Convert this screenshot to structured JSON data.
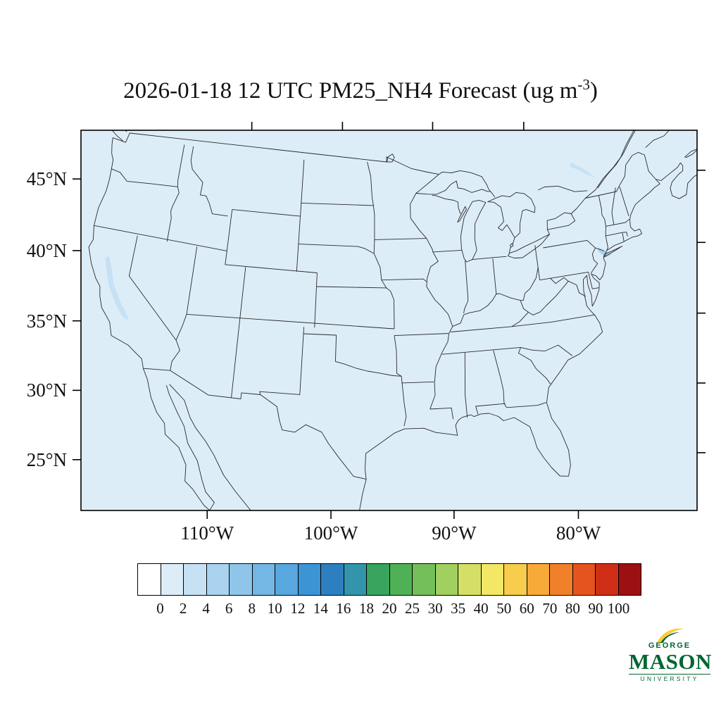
{
  "title": {
    "prefix": "2026-01-18 12 UTC PM25_NH4 Forecast (ug m",
    "exponent": "-3",
    "suffix": ")"
  },
  "axes": {
    "lat_ticks": [
      {
        "label": "45°N",
        "value": 45
      },
      {
        "label": "40°N",
        "value": 40
      },
      {
        "label": "35°N",
        "value": 35
      },
      {
        "label": "30°N",
        "value": 30
      },
      {
        "label": "25°N",
        "value": 25
      }
    ],
    "lon_ticks": [
      {
        "label": "110°W",
        "value": -110
      },
      {
        "label": "100°W",
        "value": -100
      },
      {
        "label": "90°W",
        "value": -90
      },
      {
        "label": "80°W",
        "value": -80
      }
    ]
  },
  "colorbar": {
    "labels": [
      "0",
      "2",
      "4",
      "6",
      "8",
      "10",
      "12",
      "14",
      "16",
      "18",
      "20",
      "25",
      "30",
      "35",
      "40",
      "50",
      "60",
      "70",
      "80",
      "90",
      "100"
    ],
    "colors": [
      "#ffffff",
      "#ddedf8",
      "#c6e1f4",
      "#abd3ef",
      "#90c5ea",
      "#74b6e4",
      "#58a7de",
      "#3b95d4",
      "#2d7fc0",
      "#3295ab",
      "#38a45e",
      "#4fb156",
      "#74bf5a",
      "#a1cf60",
      "#d3e065",
      "#f2e865",
      "#f8cc4c",
      "#f7a93a",
      "#f1802b",
      "#e5541f",
      "#d02f17",
      "#9c1012"
    ]
  },
  "map": {
    "background": "#ddedf8",
    "outline_color": "#2a2a2a",
    "frame_color": "#000000"
  },
  "logo": {
    "top": "GEORGE",
    "main": "MASON",
    "bottom": "UNIVERSITY",
    "green": "#006633",
    "gold": "#ffcc33"
  }
}
